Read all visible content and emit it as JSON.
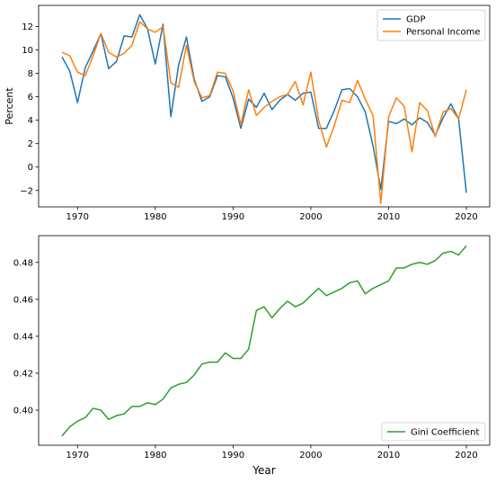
{
  "chart_data": [
    {
      "type": "line",
      "ylabel": "Percent",
      "xlim": [
        1965,
        2023
      ],
      "ylim": [
        -3.4,
        13.8
      ],
      "xticks": [
        1970,
        1980,
        1990,
        2000,
        2010,
        2020
      ],
      "yticks": [
        -2,
        0,
        2,
        4,
        6,
        8,
        10,
        12
      ],
      "legend_position": "top-right",
      "x": [
        1968,
        1969,
        1970,
        1971,
        1972,
        1973,
        1974,
        1975,
        1976,
        1977,
        1978,
        1979,
        1980,
        1981,
        1982,
        1983,
        1984,
        1985,
        1986,
        1987,
        1988,
        1989,
        1990,
        1991,
        1992,
        1993,
        1994,
        1995,
        1996,
        1997,
        1998,
        1999,
        2000,
        2001,
        2002,
        2003,
        2004,
        2005,
        2006,
        2007,
        2008,
        2009,
        2010,
        2011,
        2012,
        2013,
        2014,
        2015,
        2016,
        2017,
        2018,
        2019,
        2020
      ],
      "series": [
        {
          "name": "GDP",
          "color": "#1f77b4",
          "values": [
            9.4,
            8.2,
            5.5,
            8.5,
            9.9,
            11.4,
            8.4,
            9.0,
            11.2,
            11.1,
            13.0,
            11.8,
            8.8,
            12.2,
            4.3,
            8.7,
            11.1,
            7.5,
            5.6,
            6.0,
            7.8,
            7.7,
            5.9,
            3.3,
            5.8,
            5.1,
            6.3,
            4.9,
            5.7,
            6.2,
            5.7,
            6.3,
            6.4,
            3.3,
            3.3,
            4.8,
            6.6,
            6.7,
            6.0,
            4.7,
            1.8,
            -1.9,
            3.9,
            3.7,
            4.1,
            3.6,
            4.2,
            3.8,
            2.7,
            4.2,
            5.4,
            4.1,
            -2.2
          ]
        },
        {
          "name": "Personal Income",
          "color": "#ff7f0e",
          "values": [
            9.8,
            9.5,
            8.1,
            7.8,
            9.5,
            11.4,
            9.8,
            9.4,
            9.7,
            10.4,
            12.4,
            11.8,
            11.5,
            12.0,
            7.2,
            6.8,
            10.4,
            7.3,
            5.9,
            6.1,
            8.1,
            8.0,
            6.5,
            3.6,
            6.6,
            4.4,
            5.1,
            5.6,
            6.0,
            6.2,
            7.3,
            5.3,
            8.1,
            4.0,
            1.7,
            3.5,
            5.7,
            5.5,
            7.4,
            5.8,
            4.4,
            -3.1,
            4.3,
            5.9,
            5.2,
            1.3,
            5.5,
            4.8,
            2.6,
            4.7,
            5.0,
            4.1,
            6.6
          ]
        }
      ]
    },
    {
      "type": "line",
      "xlabel": "Year",
      "xlim": [
        1965,
        2023
      ],
      "ylim": [
        0.381,
        0.4945
      ],
      "xticks": [
        1970,
        1980,
        1990,
        2000,
        2010,
        2020
      ],
      "yticks": [
        0.4,
        0.42,
        0.44,
        0.46,
        0.48
      ],
      "ytick_labels": [
        "0.40",
        "0.42",
        "0.44",
        "0.46",
        "0.48"
      ],
      "legend_position": "bottom-right",
      "x": [
        1968,
        1969,
        1970,
        1971,
        1972,
        1973,
        1974,
        1975,
        1976,
        1977,
        1978,
        1979,
        1980,
        1981,
        1982,
        1983,
        1984,
        1985,
        1986,
        1987,
        1988,
        1989,
        1990,
        1991,
        1992,
        1993,
        1994,
        1995,
        1996,
        1997,
        1998,
        1999,
        2000,
        2001,
        2002,
        2003,
        2004,
        2005,
        2006,
        2007,
        2008,
        2009,
        2010,
        2011,
        2012,
        2013,
        2014,
        2015,
        2016,
        2017,
        2018,
        2019,
        2020
      ],
      "series": [
        {
          "name": "Gini Coefficient",
          "color": "#2ca02c",
          "values": [
            0.386,
            0.391,
            0.394,
            0.396,
            0.401,
            0.4,
            0.395,
            0.397,
            0.398,
            0.402,
            0.402,
            0.404,
            0.403,
            0.406,
            0.412,
            0.414,
            0.415,
            0.419,
            0.425,
            0.426,
            0.426,
            0.431,
            0.428,
            0.428,
            0.433,
            0.454,
            0.456,
            0.45,
            0.455,
            0.459,
            0.456,
            0.458,
            0.462,
            0.466,
            0.462,
            0.464,
            0.466,
            0.469,
            0.47,
            0.463,
            0.466,
            0.468,
            0.47,
            0.477,
            0.477,
            0.479,
            0.48,
            0.479,
            0.481,
            0.485,
            0.486,
            0.484,
            0.489
          ]
        }
      ]
    }
  ]
}
